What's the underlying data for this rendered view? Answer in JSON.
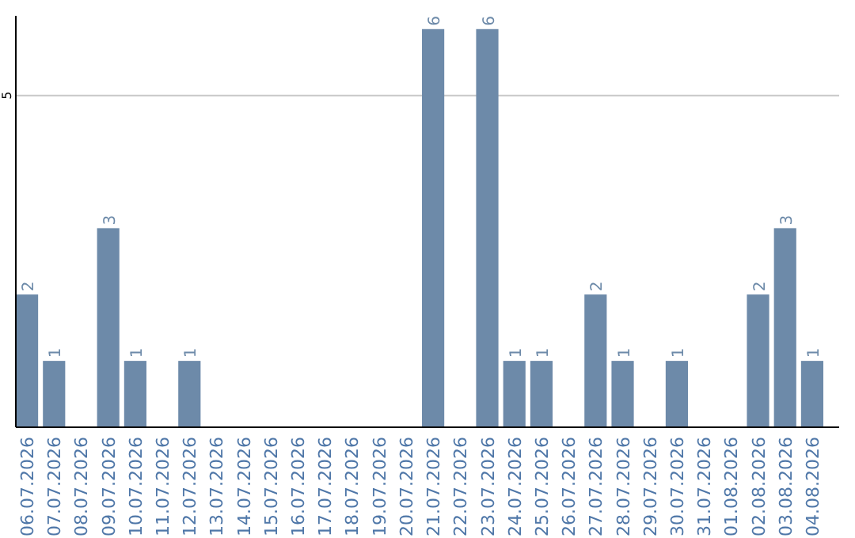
{
  "chart_data": {
    "type": "bar",
    "categories": [
      "06.07.2026",
      "07.07.2026",
      "08.07.2026",
      "09.07.2026",
      "10.07.2026",
      "11.07.2026",
      "12.07.2026",
      "13.07.2026",
      "14.07.2026",
      "15.07.2026",
      "16.07.2026",
      "17.07.2026",
      "18.07.2026",
      "19.07.2026",
      "20.07.2026",
      "21.07.2026",
      "22.07.2026",
      "23.07.2026",
      "24.07.2026",
      "25.07.2026",
      "26.07.2026",
      "27.07.2026",
      "28.07.2026",
      "29.07.2026",
      "30.07.2026",
      "31.07.2026",
      "01.08.2026",
      "02.08.2026",
      "03.08.2026",
      "04.08.2026"
    ],
    "values": [
      2,
      1,
      0,
      3,
      1,
      0,
      1,
      0,
      0,
      0,
      0,
      0,
      0,
      0,
      0,
      6,
      0,
      6,
      1,
      1,
      0,
      2,
      1,
      0,
      1,
      0,
      0,
      2,
      3,
      1
    ],
    "value_labels": [
      "2",
      "1",
      null,
      "3",
      "1",
      null,
      "1",
      null,
      null,
      null,
      null,
      null,
      null,
      null,
      null,
      "6",
      null,
      "6",
      "1",
      "1",
      null,
      "2",
      "1",
      null,
      "1",
      null,
      null,
      "2",
      "3",
      "1"
    ],
    "color": "#6d8aa9",
    "ylim": [
      0,
      6.2
    ],
    "yticks": [
      5
    ],
    "grid": "y"
  }
}
